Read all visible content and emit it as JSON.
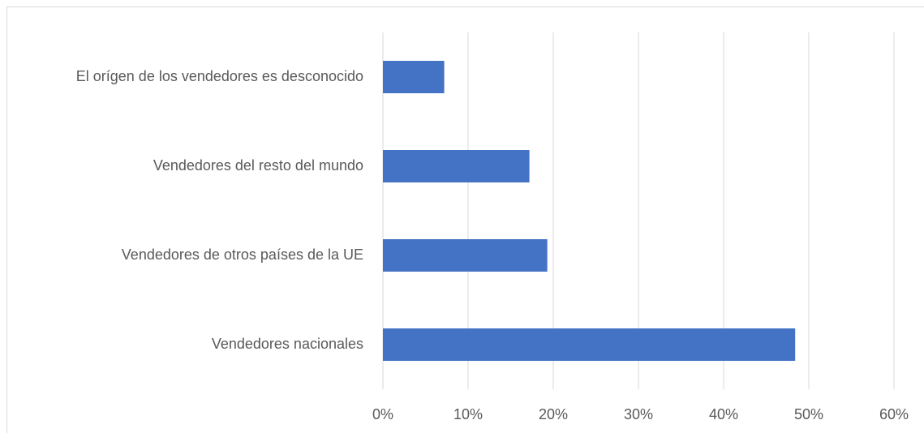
{
  "chart_data": {
    "type": "bar",
    "orientation": "horizontal",
    "categories": [
      "El orígen de los vendedores es desconocido",
      "Vendedores del resto del mundo",
      "Vendedores de otros países de la UE",
      "Vendedores nacionales"
    ],
    "values": [
      7.2,
      17.2,
      19.3,
      48.4
    ],
    "color": "#4472c4",
    "xlim": [
      0,
      60
    ],
    "xticks": [
      {
        "value": 0,
        "label": "0%"
      },
      {
        "value": 10,
        "label": "10%"
      },
      {
        "value": 20,
        "label": "20%"
      },
      {
        "value": 30,
        "label": "30%"
      },
      {
        "value": 40,
        "label": "40%"
      },
      {
        "value": 50,
        "label": "50%"
      },
      {
        "value": 60,
        "label": "60%"
      }
    ],
    "grid": true
  }
}
